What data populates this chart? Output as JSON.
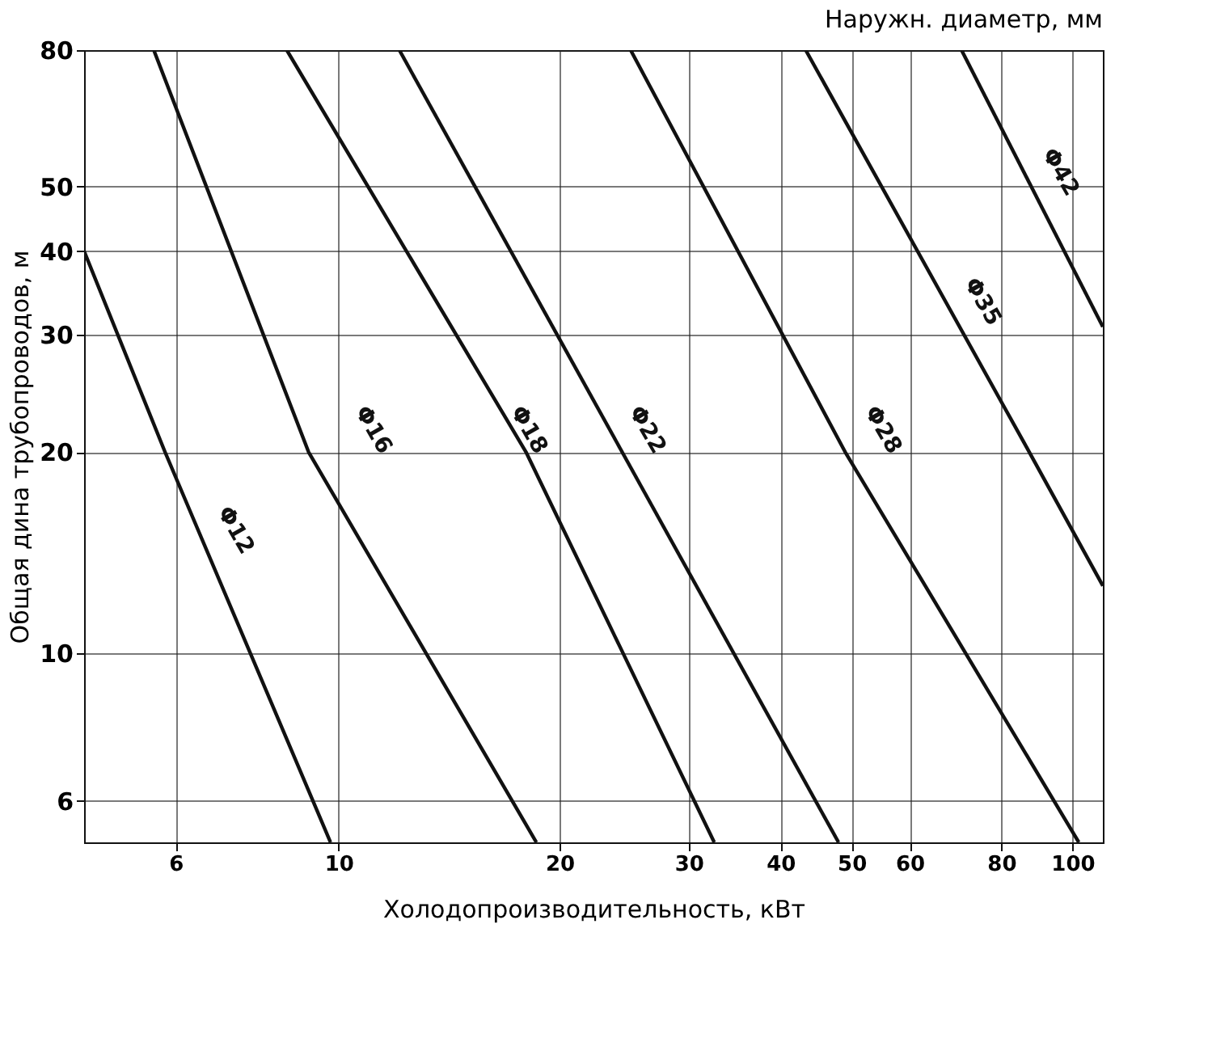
{
  "chart_data": {
    "type": "line",
    "title": "Наружн. диаметр, мм",
    "xlabel": "Холодопроизводительность, кВт",
    "ylabel": "Общая дина трубопроводов, м",
    "log": "xy",
    "grid": true,
    "legend": false,
    "marker": "none",
    "line_style": "solid",
    "xlim": [
      4.5,
      110
    ],
    "xticks": [
      6,
      10,
      20,
      30,
      40,
      50,
      60,
      80,
      100
    ],
    "ylim": [
      5.2,
      80
    ],
    "yticks": [
      6,
      10,
      20,
      30,
      40,
      50,
      80
    ],
    "series": [
      {
        "name": "Φ12",
        "color": "#111111",
        "x": [
          4.5,
          5.8,
          9.75
        ],
        "values": [
          40,
          20,
          5.2
        ]
      },
      {
        "name": "Φ16",
        "color": "#111111",
        "x": [
          5.6,
          9.1,
          18.6
        ],
        "values": [
          80,
          20,
          5.2
        ]
      },
      {
        "name": "Φ18",
        "color": "#111111",
        "x": [
          8.5,
          18,
          32.5
        ],
        "values": [
          80,
          20,
          5.2
        ]
      },
      {
        "name": "Φ22",
        "color": "#111111",
        "x": [
          12.1,
          48
        ],
        "values": [
          80,
          5.2
        ]
      },
      {
        "name": "Φ28",
        "color": "#111111",
        "x": [
          25,
          49,
          102
        ],
        "values": [
          80,
          20,
          5.2
        ]
      },
      {
        "name": "Φ35",
        "color": "#111111",
        "x": [
          43.3,
          86,
          110
        ],
        "values": [
          80,
          20.6,
          12.6
        ]
      },
      {
        "name": "Φ42",
        "color": "#111111",
        "x": [
          70.6,
          110
        ],
        "values": [
          80,
          30.8
        ]
      }
    ]
  }
}
